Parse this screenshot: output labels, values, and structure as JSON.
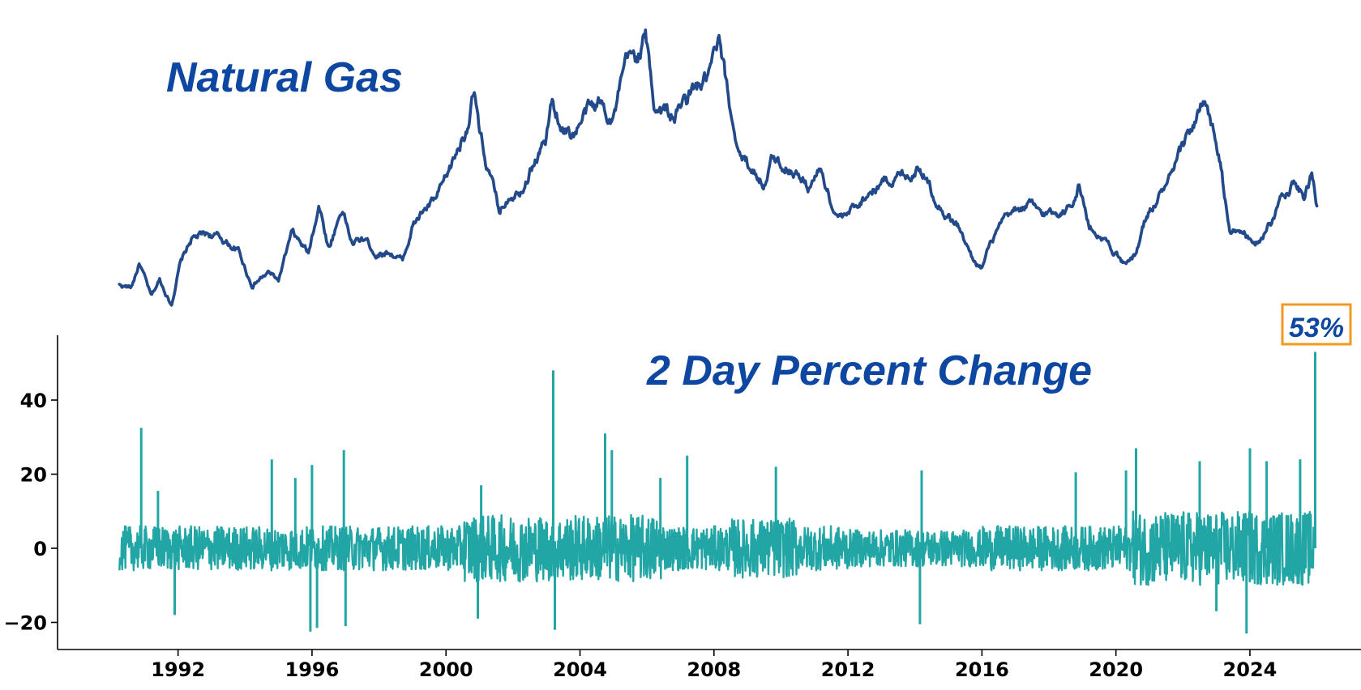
{
  "chart_data": [
    {
      "type": "line",
      "title": "Natural Gas",
      "series": [
        {
          "color": "#224a8a",
          "x": [
            1990.25,
            1990.6,
            1990.85,
            1991.2,
            1991.45,
            1991.8,
            1992.05,
            1992.4,
            1992.9,
            1993.3,
            1993.8,
            1994.2,
            1994.7,
            1995.0,
            1995.4,
            1995.9,
            1996.2,
            1996.5,
            1996.9,
            1997.2,
            1997.6,
            1997.9,
            1998.3,
            1998.7,
            1999.0,
            1999.3,
            1999.7,
            2000.0,
            2000.3,
            2000.6,
            2000.85,
            2001.0,
            2001.3,
            2001.6,
            2001.9,
            2002.2,
            2002.6,
            2003.0,
            2003.15,
            2003.5,
            2003.8,
            2004.2,
            2004.6,
            2005.0,
            2005.4,
            2005.75,
            2005.95,
            2006.2,
            2006.5,
            2006.8,
            2007.1,
            2007.4,
            2007.8,
            2008.15,
            2008.5,
            2008.8,
            2009.2,
            2009.5,
            2009.75,
            2010.0,
            2010.4,
            2010.8,
            2011.2,
            2011.6,
            2011.9,
            2012.3,
            2012.7,
            2013.1,
            2013.5,
            2013.9,
            2014.15,
            2014.5,
            2014.9,
            2015.3,
            2015.7,
            2016.0,
            2016.2,
            2016.6,
            2017.0,
            2017.4,
            2017.8,
            2018.2,
            2018.6,
            2018.9,
            2019.2,
            2019.6,
            2020.0,
            2020.3,
            2020.6,
            2020.9,
            2021.3,
            2021.7,
            2022.0,
            2022.3,
            2022.6,
            2022.9,
            2023.1,
            2023.4,
            2023.8,
            2024.1,
            2024.4,
            2024.7,
            2025.0,
            2025.3,
            2025.6,
            2025.85,
            2026.0
          ],
          "y": [
            3.1,
            3.0,
            4.0,
            2.6,
            3.3,
            2.3,
            3.9,
            5.0,
            5.2,
            5.0,
            4.5,
            3.1,
            3.6,
            3.3,
            5.2,
            4.4,
            6.5,
            4.6,
            6.3,
            4.8,
            5.0,
            4.4,
            4.5,
            4.1,
            5.5,
            6.1,
            6.6,
            7.4,
            8.5,
            9.6,
            11.0,
            9.2,
            7.6,
            6.1,
            6.9,
            7.1,
            8.1,
            9.1,
            10.6,
            9.6,
            9.3,
            10.2,
            10.6,
            10.0,
            12.2,
            12.6,
            13.4,
            10.6,
            10.3,
            10.0,
            10.6,
            11.1,
            11.5,
            12.9,
            10.1,
            8.4,
            7.8,
            7.3,
            8.3,
            8.1,
            7.9,
            7.1,
            7.9,
            6.1,
            5.8,
            6.5,
            7.0,
            7.4,
            7.6,
            7.7,
            8.1,
            7.0,
            6.1,
            5.5,
            4.2,
            3.8,
            4.6,
            5.6,
            6.1,
            6.4,
            6.0,
            6.1,
            6.3,
            7.3,
            5.5,
            5.1,
            4.4,
            3.8,
            4.4,
            5.9,
            6.8,
            7.6,
            8.7,
            9.7,
            10.5,
            9.4,
            8.2,
            5.2,
            5.4,
            4.6,
            5.2,
            5.8,
            7.0,
            7.4,
            6.7,
            7.6,
            6.4
          ]
        }
      ]
    },
    {
      "type": "line",
      "title": "2 Day Percent Change",
      "annotations": [
        {
          "text": "53%",
          "x": 2025.95,
          "y": 53
        }
      ],
      "ylim": [
        -23,
        57
      ],
      "yticks": [
        "40",
        "20",
        "0",
        "−20"
      ],
      "xticks": [
        "1992",
        "1996",
        "2000",
        "2004",
        "2008",
        "2012",
        "2016",
        "2020",
        "2024"
      ],
      "series": [
        {
          "color": "#21a5a5",
          "spikes": [
            [
              1990.9,
              32.5
            ],
            [
              1991.4,
              15.5
            ],
            [
              1991.9,
              -18.0
            ],
            [
              1994.8,
              24.0
            ],
            [
              1995.5,
              19.0
            ],
            [
              1995.95,
              -22.5
            ],
            [
              1996.0,
              22.5
            ],
            [
              1996.15,
              -21.5
            ],
            [
              1996.95,
              26.5
            ],
            [
              1997.0,
              -21.0
            ],
            [
              2000.95,
              -19.0
            ],
            [
              2001.05,
              17.0
            ],
            [
              2003.2,
              48.0
            ],
            [
              2003.25,
              -22.0
            ],
            [
              2004.75,
              31.0
            ],
            [
              2004.95,
              26.5
            ],
            [
              2006.4,
              19.0
            ],
            [
              2007.2,
              25.0
            ],
            [
              2009.85,
              22.0
            ],
            [
              2014.15,
              -20.5
            ],
            [
              2014.2,
              21.0
            ],
            [
              2018.8,
              20.5
            ],
            [
              2020.3,
              21.0
            ],
            [
              2020.6,
              27.0
            ],
            [
              2022.5,
              23.5
            ],
            [
              2023.0,
              -17.0
            ],
            [
              2023.9,
              -23.0
            ],
            [
              2024.0,
              27.0
            ],
            [
              2024.5,
              23.5
            ],
            [
              2025.5,
              24.0
            ],
            [
              2025.95,
              53.0
            ]
          ]
        }
      ]
    }
  ]
}
